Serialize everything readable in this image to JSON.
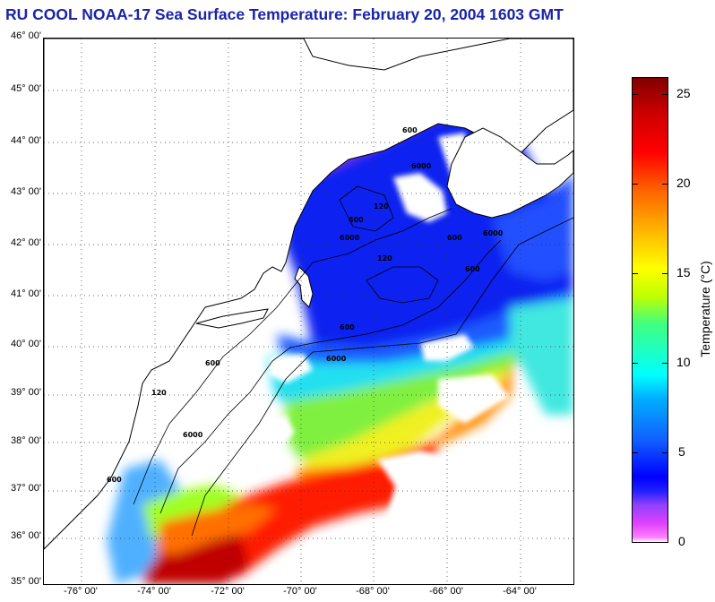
{
  "title": "RU COOL  NOAA-17  Sea Surface Temperature:  February 20, 2004 1603 GMT",
  "map": {
    "lat_labels": [
      "46° 00'",
      "45° 00'",
      "44° 00'",
      "43° 00'",
      "42° 00'",
      "41° 00'",
      "40° 00'",
      "39° 00'",
      "38° 00'",
      "37° 00'",
      "36° 00'",
      "35° 00'"
    ],
    "lon_labels": [
      "-76° 00'",
      "-74° 00'",
      "-72° 00'",
      "-70° 00'",
      "-68° 00'",
      "-66° 00'",
      "-64° 00'"
    ],
    "lat_range": [
      35,
      46
    ],
    "lon_range": [
      -77,
      -62.5
    ],
    "isobath_labels": [
      "600",
      "6000",
      "120",
      "600",
      "6000",
      "600",
      "6000",
      "120",
      "600",
      "600",
      "6000",
      "6000",
      "120",
      "600",
      "600"
    ]
  },
  "colorbar": {
    "title": "Temperature (°C)",
    "ticks": [
      "25",
      "20",
      "15",
      "10",
      "5",
      "0"
    ],
    "range": [
      0,
      26
    ],
    "colors": [
      "#ffffff",
      "#ff80ff",
      "#9040ff",
      "#0000ff",
      "#00b0ff",
      "#00ffff",
      "#c0ff00",
      "#ffff00",
      "#ff6000",
      "#ff0000",
      "#800000"
    ]
  }
}
